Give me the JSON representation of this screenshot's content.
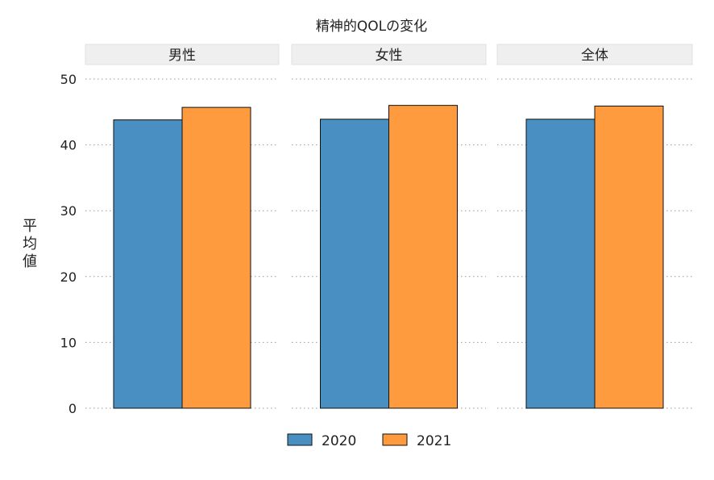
{
  "chart_data": {
    "type": "bar",
    "title": "精神的QOLの変化",
    "ylabel": "平均値",
    "xlabel": "",
    "ylim": [
      0,
      50
    ],
    "yticks": [
      0,
      10,
      20,
      30,
      40,
      50
    ],
    "grid": "horizontal dotted",
    "legend_position": "bottom",
    "panels": [
      {
        "label": "男性",
        "values": [
          43.8,
          45.7
        ]
      },
      {
        "label": "女性",
        "values": [
          43.9,
          46.0
        ]
      },
      {
        "label": "全体",
        "values": [
          43.9,
          45.9
        ]
      }
    ],
    "series": [
      {
        "name": "2020",
        "color": "#4a8fc1"
      },
      {
        "name": "2021",
        "color": "#fd9b3e"
      }
    ]
  }
}
